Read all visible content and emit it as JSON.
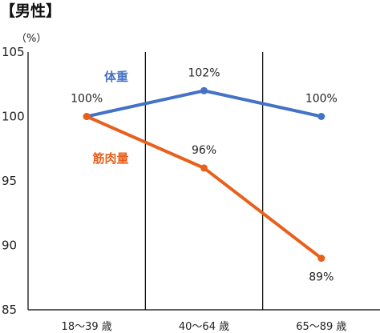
{
  "chart_data": {
    "type": "line",
    "title": "【男性】",
    "unit_label": "（%）",
    "categories": [
      "18～39 歳",
      "40～64 歳",
      "65～89 歳"
    ],
    "ylim": [
      85,
      105
    ],
    "yticks": [
      85,
      90,
      95,
      100,
      105
    ],
    "grid": "vertical dividers between categories",
    "series": [
      {
        "name": "体重",
        "color": "#4472c4",
        "values": [
          100,
          102,
          100
        ],
        "labels": [
          "100%",
          "102%",
          "100%"
        ]
      },
      {
        "name": "筋肉量",
        "color": "#e8601c",
        "values": [
          100,
          96,
          89
        ],
        "labels": [
          "",
          "96%",
          "89%"
        ]
      }
    ]
  }
}
